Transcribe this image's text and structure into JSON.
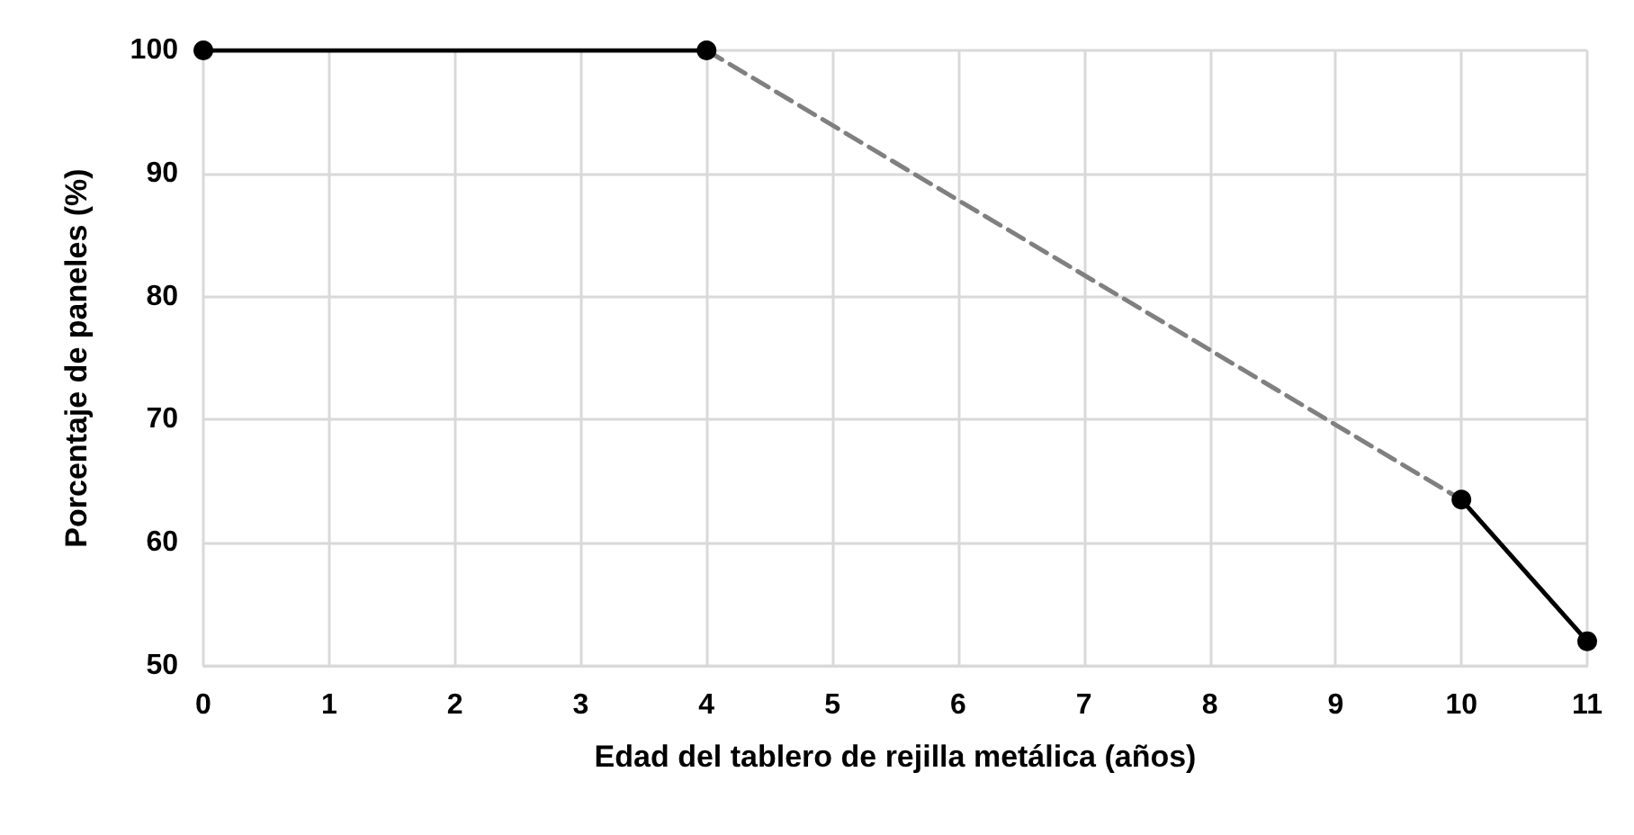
{
  "chart_data": {
    "type": "line",
    "xlabel": "Edad del tablero de rejilla metálica (años)",
    "ylabel": "Porcentaje de paneles (%)",
    "xlim": [
      0,
      11
    ],
    "xticks": [
      0,
      1,
      2,
      3,
      4,
      5,
      6,
      7,
      8,
      9,
      10,
      11
    ],
    "ylim": [
      50,
      100
    ],
    "yticks": [
      50,
      60,
      70,
      80,
      90,
      100
    ],
    "grid": true,
    "series": [
      {
        "x": [
          0,
          4
        ],
        "values": [
          100,
          100
        ],
        "color": "#000000",
        "marker": "circle",
        "line_style": "solid"
      },
      {
        "x": [
          4,
          10
        ],
        "values": [
          100,
          63.5
        ],
        "color": "#808080",
        "marker": "none",
        "line_style": "dashed"
      },
      {
        "x": [
          10,
          11
        ],
        "values": [
          63.5,
          52
        ],
        "color": "#000000",
        "marker": "circle",
        "line_style": "solid"
      }
    ]
  }
}
